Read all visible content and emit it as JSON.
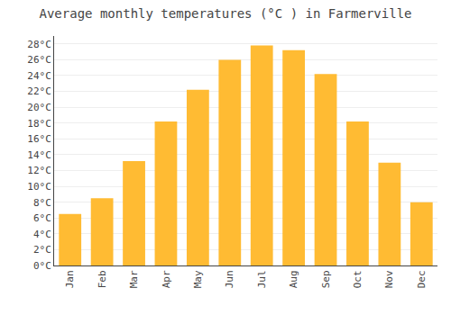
{
  "chart_data": {
    "type": "bar",
    "title": "Average monthly temperatures (°C ) in Farmerville",
    "categories": [
      "Jan",
      "Feb",
      "Mar",
      "Apr",
      "May",
      "Jun",
      "Jul",
      "Aug",
      "Sep",
      "Oct",
      "Nov",
      "Dec"
    ],
    "values": [
      6.5,
      8.5,
      13.2,
      18.2,
      22.2,
      26.0,
      27.8,
      27.2,
      24.2,
      18.2,
      13.0,
      8.0
    ],
    "color": "#FFBB33",
    "ylim": [
      0,
      29
    ],
    "yticks": [
      {
        "value": 0,
        "label": "0°C"
      },
      {
        "value": 2,
        "label": "2°C"
      },
      {
        "value": 4,
        "label": "4°C"
      },
      {
        "value": 6,
        "label": "6°C"
      },
      {
        "value": 8,
        "label": "8°C"
      },
      {
        "value": 10,
        "label": "10°C"
      },
      {
        "value": 12,
        "label": "12°C"
      },
      {
        "value": 14,
        "label": "14°C"
      },
      {
        "value": 16,
        "label": "16°C"
      },
      {
        "value": 18,
        "label": "18°C"
      },
      {
        "value": 20,
        "label": "20°C"
      },
      {
        "value": 22,
        "label": "22°C"
      },
      {
        "value": 24,
        "label": "24°C"
      },
      {
        "value": 26,
        "label": "26°C"
      },
      {
        "value": 28,
        "label": "28°C"
      }
    ],
    "grid": true
  }
}
